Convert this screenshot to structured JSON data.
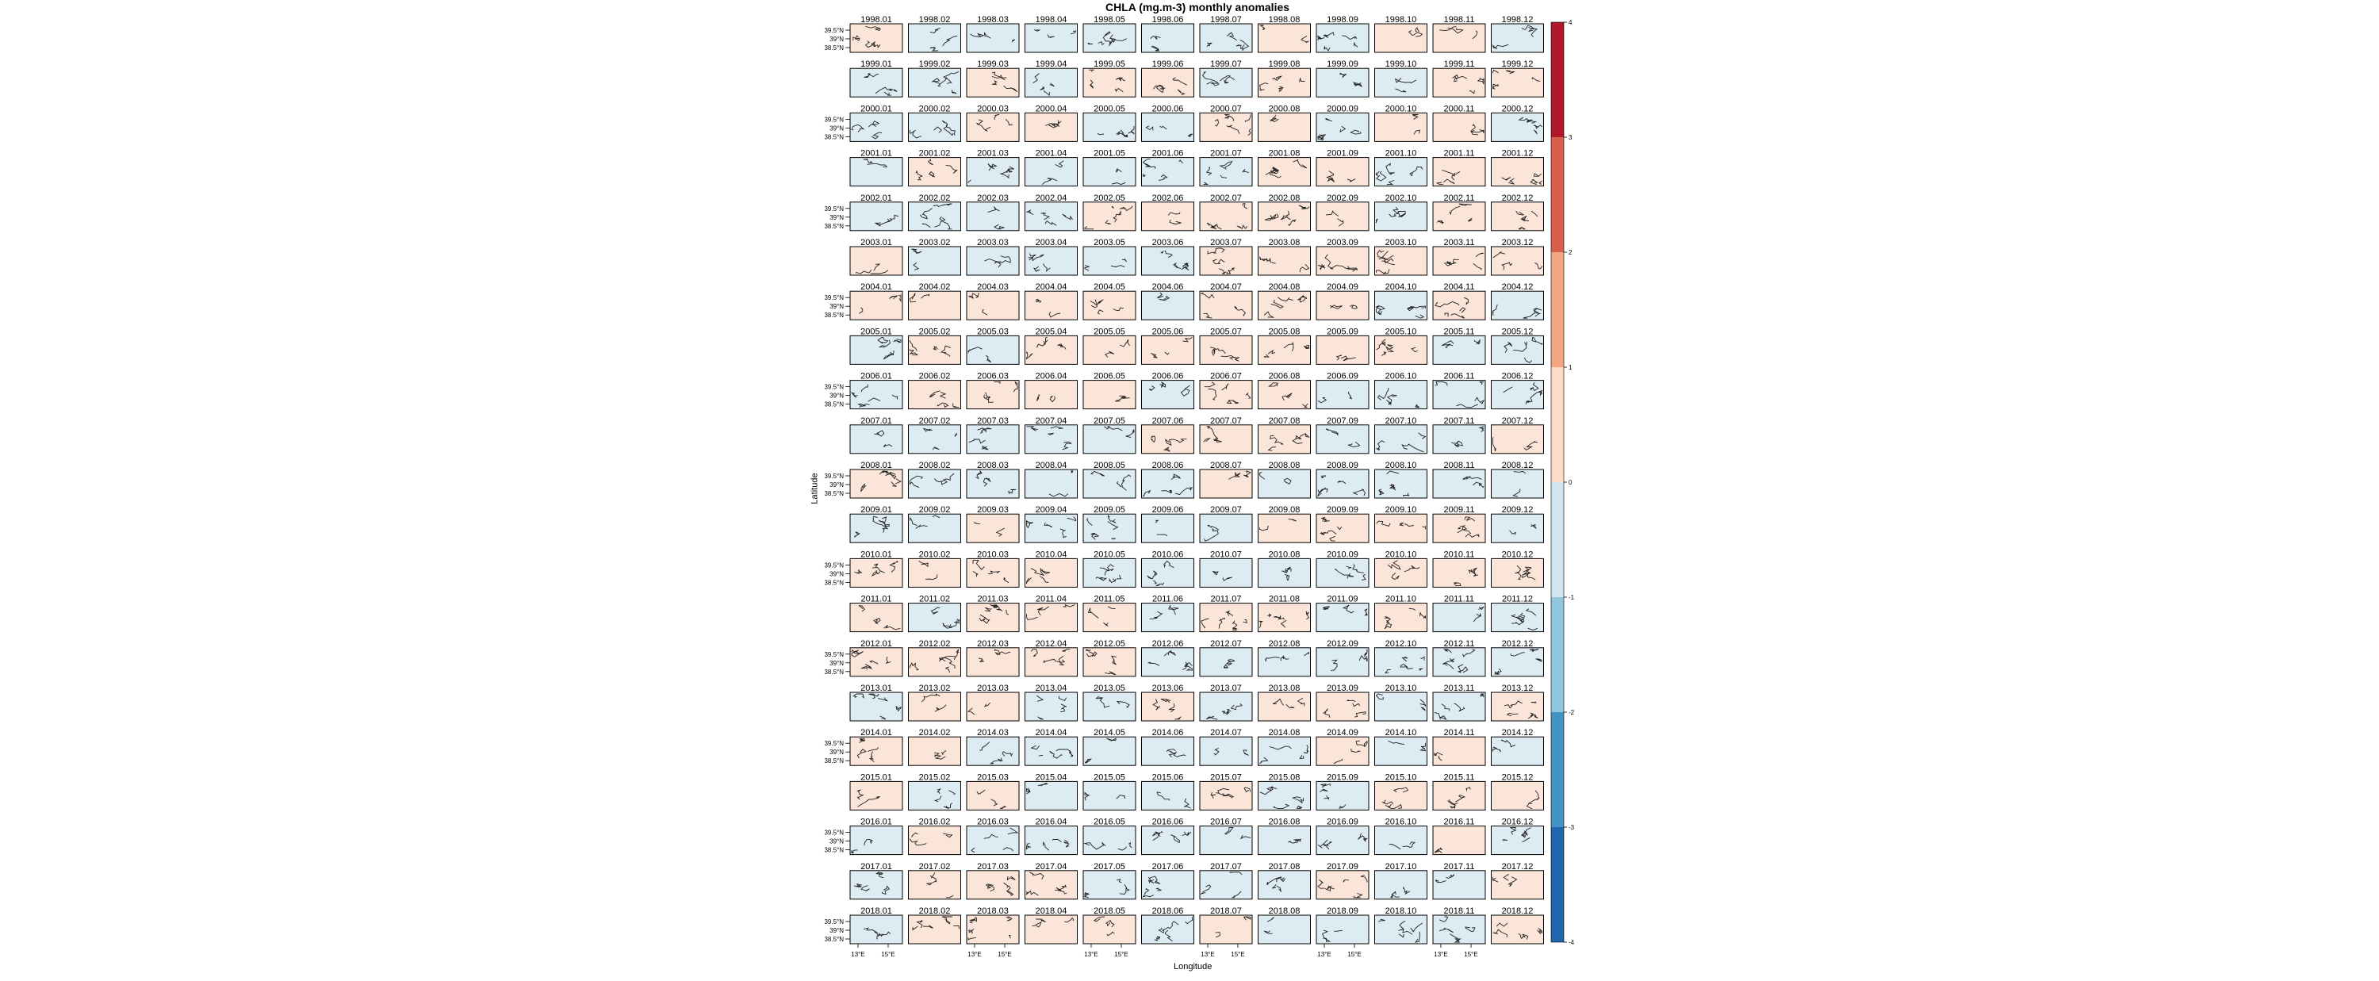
{
  "title": "CHLA (mg.m-3) monthly anomalies",
  "xlabel": "Longitude",
  "ylabel": "Latitude",
  "lat_ticks": [
    "39.5°N",
    "39°N",
    "38.5°N"
  ],
  "lon_ticks": [
    "13°E",
    "15°E"
  ],
  "colorbar": {
    "ticks": [
      -4,
      -3,
      -2,
      -1,
      0,
      1,
      2,
      3,
      4
    ],
    "colors": [
      "#2166ac",
      "#4393c3",
      "#92c5de",
      "#d1e5f0",
      "#fddbc7",
      "#f4a582",
      "#d6604d",
      "#b2182b"
    ],
    "panel_negative": "#ddebf3",
    "panel_positive": "#fbe5d8"
  },
  "chart_data": {
    "type": "heatmap",
    "title": "CHLA (mg.m-3) monthly anomalies",
    "xlabel": "Longitude",
    "ylabel": "Latitude",
    "layout": "21 rows (years 1998-2018) x 12 columns (months 01-12)",
    "color_scale": {
      "min": -4,
      "max": 4,
      "breaks": [
        -4,
        -3,
        -2,
        -1,
        0,
        1,
        2,
        3,
        4
      ],
      "palette": "RdBu (reversed)"
    },
    "panels": [
      {
        "year": "1998",
        "labels": [
          "1998.01",
          "1998.02",
          "1998.03",
          "1998.04",
          "1998.05",
          "1998.06",
          "1998.07",
          "1998.08",
          "1998.09",
          "1998.10",
          "1998.11",
          "1998.12"
        ],
        "sign": "PNNNNNNPNPPN"
      },
      {
        "year": "1999",
        "labels": [
          "1999.01",
          "1999.02",
          "1999.03",
          "1999.04",
          "1999.05",
          "1999.06",
          "1999.07",
          "1999.08",
          "1999.09",
          "1999.10",
          "1999.11",
          "1999.12"
        ],
        "sign": "NNPNPPNPNNPP"
      },
      {
        "year": "2000",
        "labels": [
          "2000.01",
          "2000.02",
          "2000.03",
          "2000.04",
          "2000.05",
          "2000.06",
          "2000.07",
          "2000.08",
          "2000.09",
          "2000.10",
          "2000.11",
          "2000.12"
        ],
        "sign": "NNPPNNPPNPPN"
      },
      {
        "year": "2001",
        "labels": [
          "2001.01",
          "2001.02",
          "2001.03",
          "2001.04",
          "2001.05",
          "2001.06",
          "2001.07",
          "2001.08",
          "2001.09",
          "2001.10",
          "2001.11",
          "2001.12"
        ],
        "sign": "NPNNNNNPPNPP"
      },
      {
        "year": "2002",
        "labels": [
          "2002.01",
          "2002.02",
          "2002.03",
          "2002.04",
          "2002.05",
          "2002.06",
          "2002.07",
          "2002.08",
          "2002.09",
          "2002.10",
          "2002.11",
          "2002.12"
        ],
        "sign": "NNNNPPPPPNPP"
      },
      {
        "year": "2003",
        "labels": [
          "2003.01",
          "2003.02",
          "2003.03",
          "2003.04",
          "2003.05",
          "2003.06",
          "2003.07",
          "2003.08",
          "2003.09",
          "2003.10",
          "2003.11",
          "2003.12"
        ],
        "sign": "PNNNNNPPPPPP"
      },
      {
        "year": "2004",
        "labels": [
          "2004.01",
          "2004.02",
          "2004.03",
          "2004.04",
          "2004.05",
          "2004.06",
          "2004.07",
          "2004.08",
          "2004.09",
          "2004.10",
          "2004.11",
          "2004.12"
        ],
        "sign": "PPPPPNPPPNPN"
      },
      {
        "year": "2005",
        "labels": [
          "2005.01",
          "2005.02",
          "2005.03",
          "2005.04",
          "2005.05",
          "2005.06",
          "2005.07",
          "2005.08",
          "2005.09",
          "2005.10",
          "2005.11",
          "2005.12"
        ],
        "sign": "NPNPPPPPPPNN"
      },
      {
        "year": "2006",
        "labels": [
          "2006.01",
          "2006.02",
          "2006.03",
          "2006.04",
          "2006.05",
          "2006.06",
          "2006.07",
          "2006.08",
          "2006.09",
          "2006.10",
          "2006.11",
          "2006.12"
        ],
        "sign": "NPPPPNPPNNNN"
      },
      {
        "year": "2007",
        "labels": [
          "2007.01",
          "2007.02",
          "2007.03",
          "2007.04",
          "2007.05",
          "2007.06",
          "2007.07",
          "2007.08",
          "2007.09",
          "2007.10",
          "2007.11",
          "2007.12"
        ],
        "sign": "NNNNNPPPNNNP"
      },
      {
        "year": "2008",
        "labels": [
          "2008.01",
          "2008.02",
          "2008.03",
          "2008.04",
          "2008.05",
          "2008.06",
          "2008.07",
          "2008.08",
          "2008.09",
          "2008.10",
          "2008.11",
          "2008.12"
        ],
        "sign": "PNNNNNPNNNNN"
      },
      {
        "year": "2009",
        "labels": [
          "2009.01",
          "2009.02",
          "2009.03",
          "2009.04",
          "2009.05",
          "2009.06",
          "2009.07",
          "2009.08",
          "2009.09",
          "2009.10",
          "2009.11",
          "2009.12"
        ],
        "sign": "NNPNNNNPPPPN"
      },
      {
        "year": "2010",
        "labels": [
          "2010.01",
          "2010.02",
          "2010.03",
          "2010.04",
          "2010.05",
          "2010.06",
          "2010.07",
          "2010.08",
          "2010.09",
          "2010.10",
          "2010.11",
          "2010.12"
        ],
        "sign": "PPPPNNNNNPPP"
      },
      {
        "year": "2011",
        "labels": [
          "2011.01",
          "2011.02",
          "2011.03",
          "2011.04",
          "2011.05",
          "2011.06",
          "2011.07",
          "2011.08",
          "2011.09",
          "2011.10",
          "2011.11",
          "2011.12"
        ],
        "sign": "PNPPPNPPNPNN"
      },
      {
        "year": "2012",
        "labels": [
          "2012.01",
          "2012.02",
          "2012.03",
          "2012.04",
          "2012.05",
          "2012.06",
          "2012.07",
          "2012.08",
          "2012.09",
          "2012.10",
          "2012.11",
          "2012.12"
        ],
        "sign": "PPPPPNNNNNNN"
      },
      {
        "year": "2013",
        "labels": [
          "2013.01",
          "2013.02",
          "2013.03",
          "2013.04",
          "2013.05",
          "2013.06",
          "2013.07",
          "2013.08",
          "2013.09",
          "2013.10",
          "2013.11",
          "2013.12"
        ],
        "sign": "NPPNNPNPPNNP"
      },
      {
        "year": "2014",
        "labels": [
          "2014.01",
          "2014.02",
          "2014.03",
          "2014.04",
          "2014.05",
          "2014.06",
          "2014.07",
          "2014.08",
          "2014.09",
          "2014.10",
          "2014.11",
          "2014.12"
        ],
        "sign": "PPNNNNNNPNPN"
      },
      {
        "year": "2015",
        "labels": [
          "2015.01",
          "2015.02",
          "2015.03",
          "2015.04",
          "2015.05",
          "2015.06",
          "2015.07",
          "2015.08",
          "2015.09",
          "2015.10",
          "2015.11",
          "2015.12"
        ],
        "sign": "PNPNNNPNNPPP"
      },
      {
        "year": "2016",
        "labels": [
          "2016.01",
          "2016.02",
          "2016.03",
          "2016.04",
          "2016.05",
          "2016.06",
          "2016.07",
          "2016.08",
          "2016.09",
          "2016.10",
          "2016.11",
          "2016.12"
        ],
        "sign": "NPNNNNNNNNPN"
      },
      {
        "year": "2017",
        "labels": [
          "2017.01",
          "2017.02",
          "2017.03",
          "2017.04",
          "2017.05",
          "2017.06",
          "2017.07",
          "2017.08",
          "2017.09",
          "2017.10",
          "2017.11",
          "2017.12"
        ],
        "sign": "NPPPNNNNPNNP"
      },
      {
        "year": "2018",
        "labels": [
          "2018.01",
          "2018.02",
          "2018.03",
          "2018.04",
          "2018.05",
          "2018.06",
          "2018.07",
          "2018.08",
          "2018.09",
          "2018.10",
          "2018.11",
          "2018.12"
        ],
        "sign": "NPPPPNPNNNNP"
      }
    ]
  }
}
